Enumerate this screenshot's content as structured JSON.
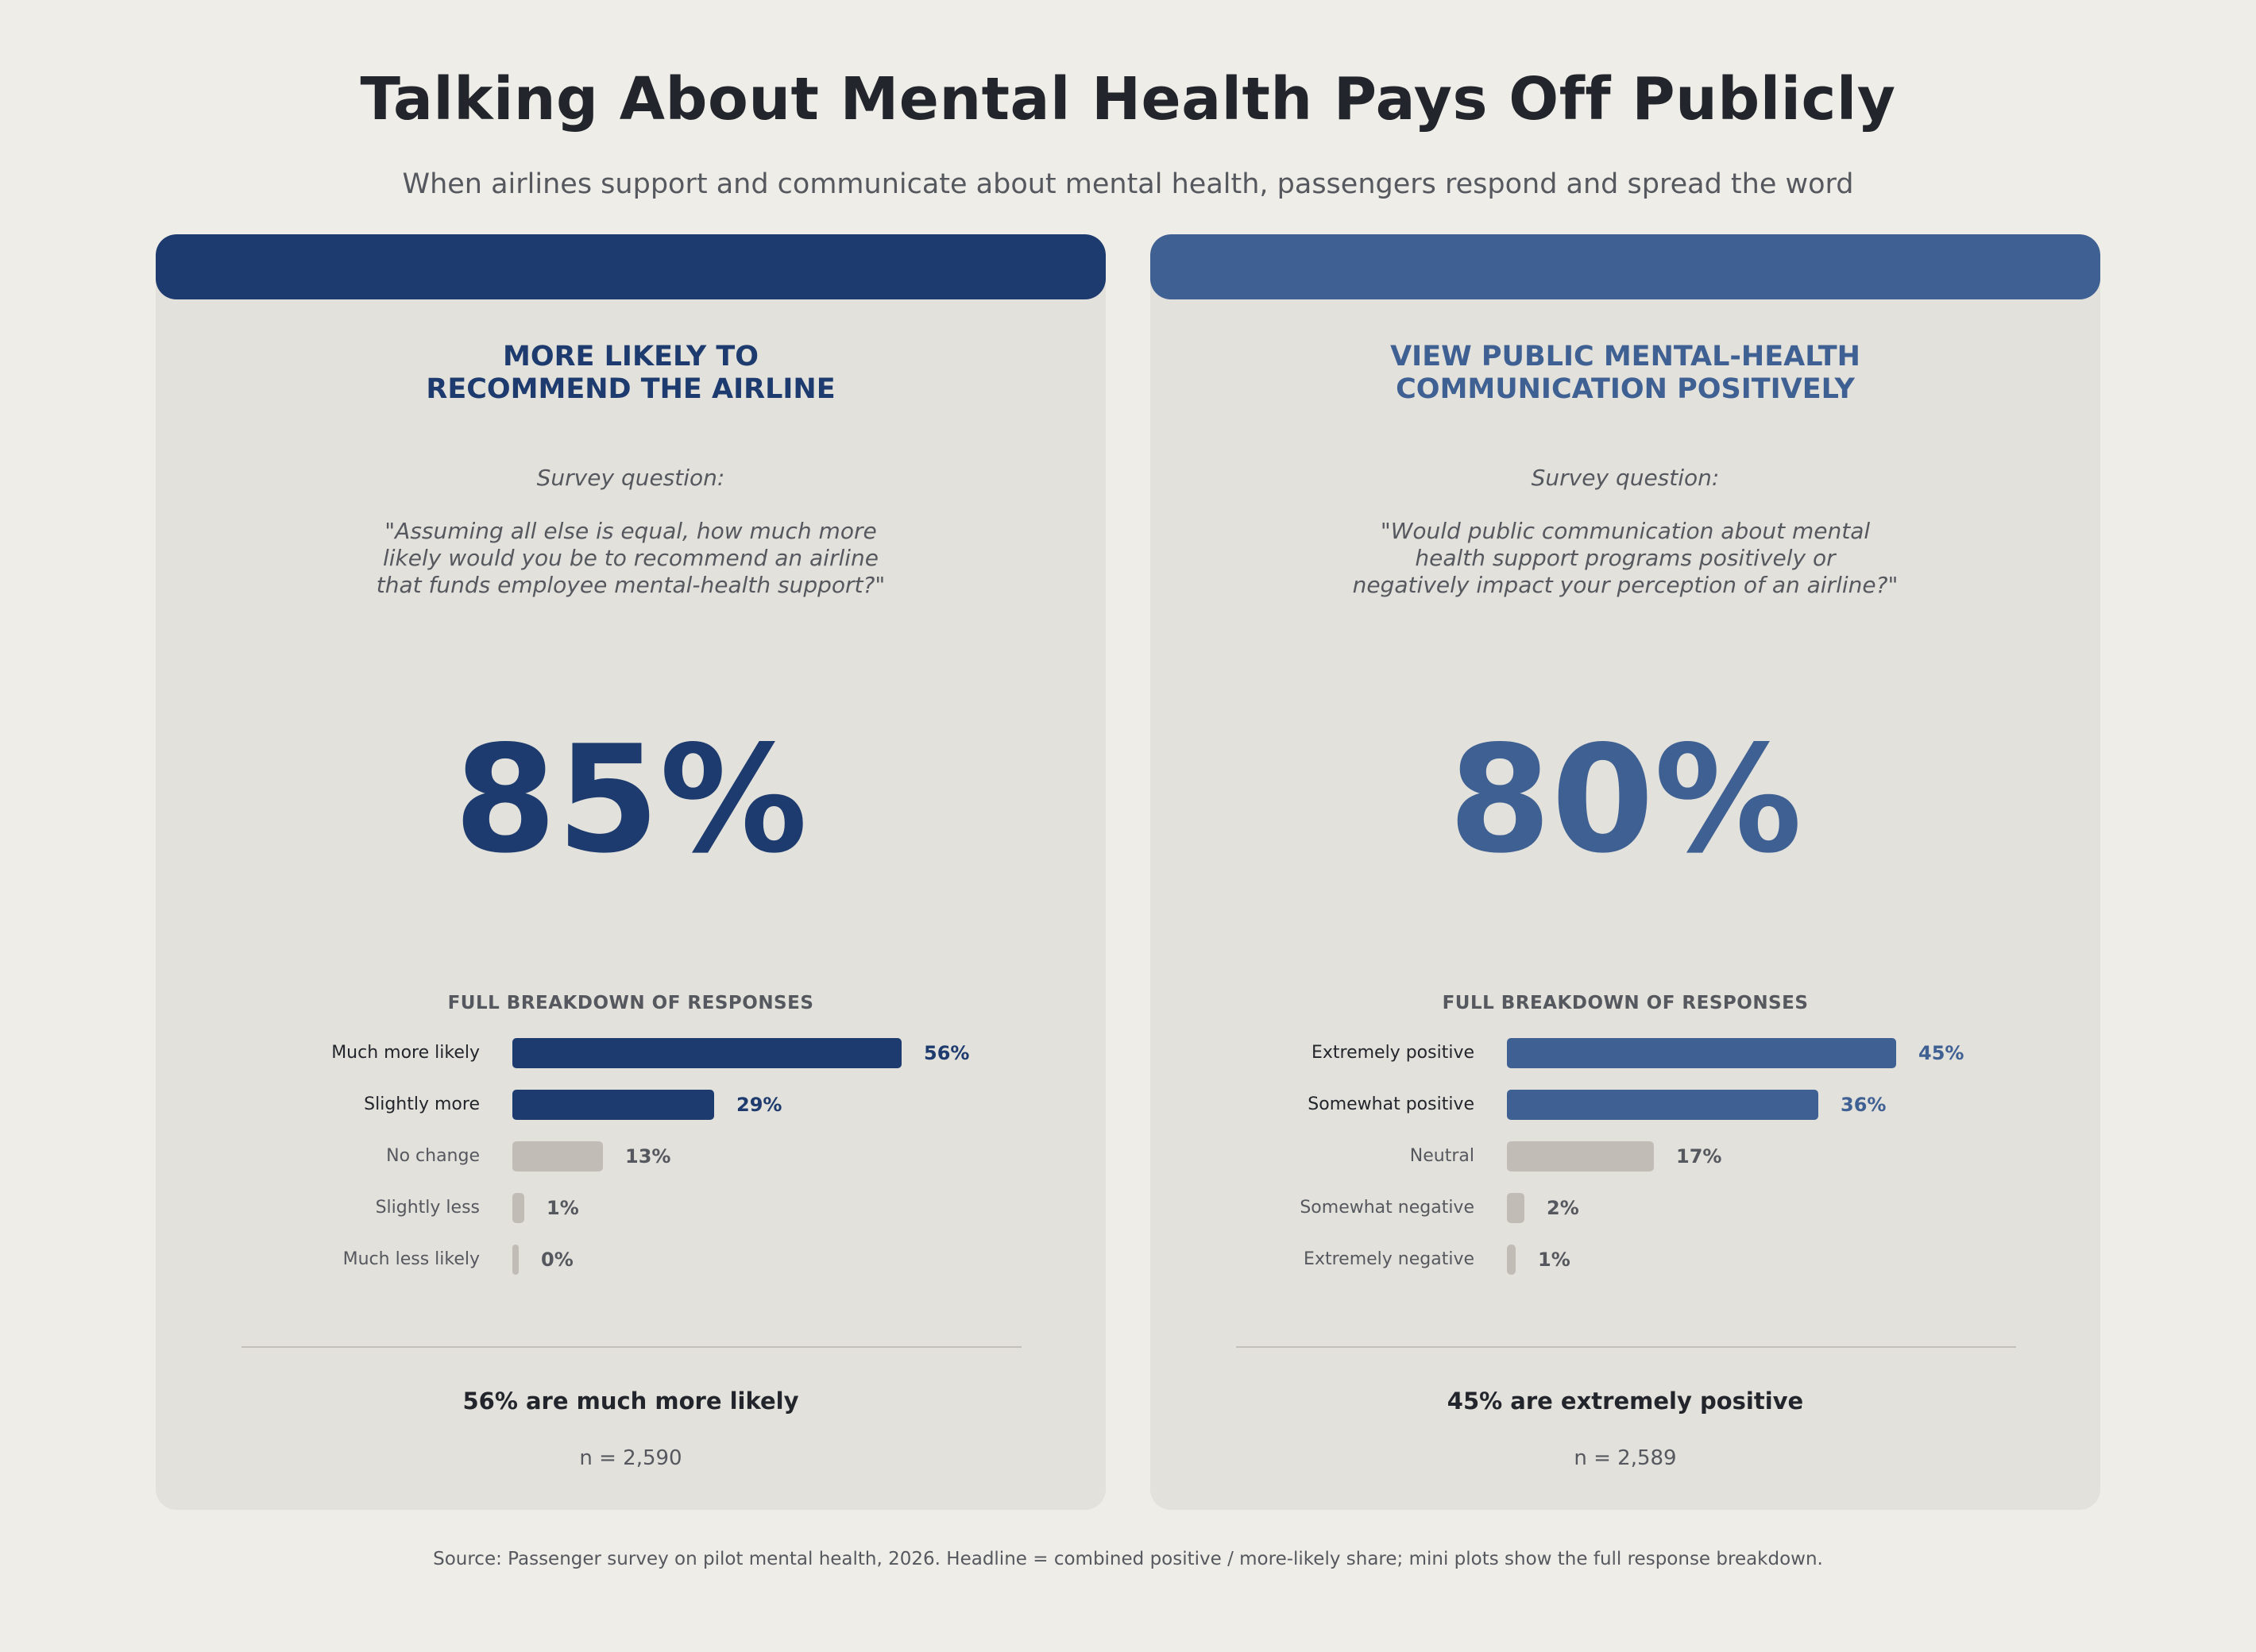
{
  "title": "Talking About Mental Health Pays Off Publicly",
  "subtitle": "When airlines support and communicate about mental health, passengers respond and spread the word",
  "source": "Source: Passenger survey on pilot mental health, 2026.  Headline = combined positive / more-likely share; mini plots show the full response breakdown.",
  "colors": {
    "background": "#efede7",
    "card": "#e3e1db",
    "left_accent": "#1d3b6e",
    "right_accent": "#3f6093",
    "neutral_bar": "#c1bdb6"
  },
  "cards": [
    {
      "heading_line1": "MORE LIKELY TO",
      "heading_line2": "RECOMMEND THE AIRLINE",
      "survey_label": "Survey question:",
      "question_line1": "\"Assuming all else is equal, how much more",
      "question_line2": "likely would you be to recommend an airline",
      "question_line3": "that funds employee mental-health support?\"",
      "headline": "85%",
      "breakdown_title": "FULL BREAKDOWN OF RESPONSES",
      "summary": "56% are much more likely",
      "sample": "n = 2,590"
    },
    {
      "heading_line1": "VIEW PUBLIC MENTAL-HEALTH",
      "heading_line2": "COMMUNICATION POSITIVELY",
      "survey_label": "Survey question:",
      "question_line1": "\"Would public communication about mental",
      "question_line2": "health support programs positively or",
      "question_line3": "negatively impact your perception of an airline?\"",
      "headline": "80%",
      "breakdown_title": "FULL BREAKDOWN OF RESPONSES",
      "summary": "45% are extremely positive",
      "sample": "n = 2,589"
    }
  ],
  "chart_data": [
    {
      "type": "bar",
      "orientation": "horizontal",
      "categories": [
        "Much more likely",
        "Slightly more",
        "No change",
        "Slightly less",
        "Much less likely"
      ],
      "values": [
        56,
        29,
        13,
        1,
        0
      ],
      "value_labels": [
        "56%",
        "29%",
        "13%",
        "1%",
        "0%"
      ],
      "highlighted": [
        true,
        true,
        false,
        false,
        false
      ],
      "xlim": [
        0,
        56
      ]
    },
    {
      "type": "bar",
      "orientation": "horizontal",
      "categories": [
        "Extremely positive",
        "Somewhat positive",
        "Neutral",
        "Somewhat negative",
        "Extremely negative"
      ],
      "values": [
        45,
        36,
        17,
        2,
        1
      ],
      "value_labels": [
        "45%",
        "36%",
        "17%",
        "2%",
        "1%"
      ],
      "highlighted": [
        true,
        true,
        false,
        false,
        false
      ],
      "xlim": [
        0,
        45
      ]
    }
  ]
}
